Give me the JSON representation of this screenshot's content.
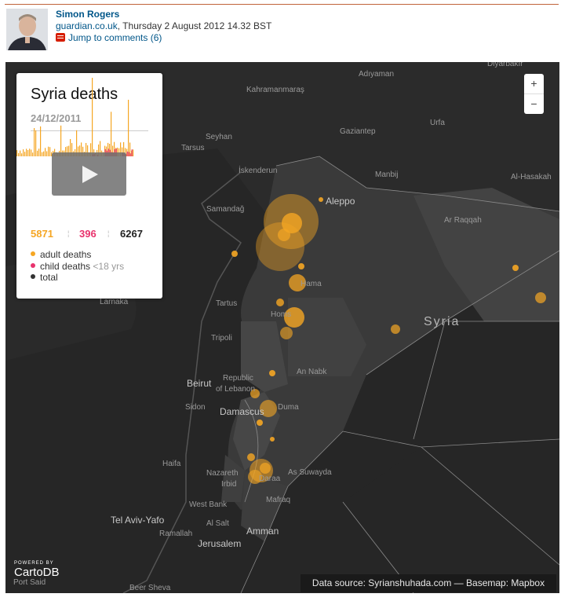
{
  "author": {
    "name": "Simon Rogers",
    "source": "guardian.co.uk",
    "date": ", Thursday 2 August 2012 14.32 BST",
    "comments": "Jump to comments (6)"
  },
  "map": {
    "zoom_in": "+",
    "zoom_out": "−",
    "labels": {
      "diyarbakir": "Diyarbakır",
      "adiyaman": "Adıyaman",
      "kahramanmaras": "Kahramanmaraş",
      "urfa": "Urfa",
      "gaziantep": "Gaziantep",
      "tarsus": "Tarsus",
      "seyhan": "Seyhan",
      "iskenderun": "İskenderun",
      "manbij": "Manbij",
      "al_hasakah": "Al-Hasakah",
      "aleppo": "Aleppo",
      "samandag": "Samandağ",
      "ar_raqqah": "Ar Raqqah",
      "syria": "Syria",
      "hama": "Hama",
      "homs": "Homs",
      "tartus": "Tartus",
      "larnaka": "Larnaka",
      "tripoli": "Tripoli",
      "an_nabk": "An Nabk",
      "beirut": "Beirut",
      "republic": "Republic",
      "of_lebanon": "of Lebanon",
      "sidon": "Sidon",
      "damascus": "Damascus",
      "duma": "Duma",
      "haifa": "Haifa",
      "nazareth": "Nazareth",
      "irbid": "Irbid",
      "daraa": "Daraa",
      "as_suwayda": "As Suwayda",
      "mafraq": "Mafraq",
      "west_bank": "West Bank",
      "tel_aviv": "Tel Aviv-Yafo",
      "al_salt": "Al Salt",
      "ramallah": "Ramallah",
      "amman": "Amman",
      "jerusalem": "Jerusalem",
      "port_said": "Port Said",
      "beer_sheva": "Beer Sheva"
    },
    "colors": {
      "adult": "#f5a623",
      "child": "#e8336d",
      "total": "#333333"
    }
  },
  "panel": {
    "title": "Syria deaths",
    "date": "24/12/2011",
    "adult_count": "5871",
    "child_count": "396",
    "total_count": "6267",
    "legend": {
      "adult": "adult deaths",
      "child": "child deaths",
      "child_note": "<18 yrs",
      "total": "total"
    }
  },
  "branding": {
    "powered": "POWERED BY",
    "name": "CartoDB"
  },
  "credits": "Data source: Syrianshuhada.com — Basemap: Mapbox"
}
